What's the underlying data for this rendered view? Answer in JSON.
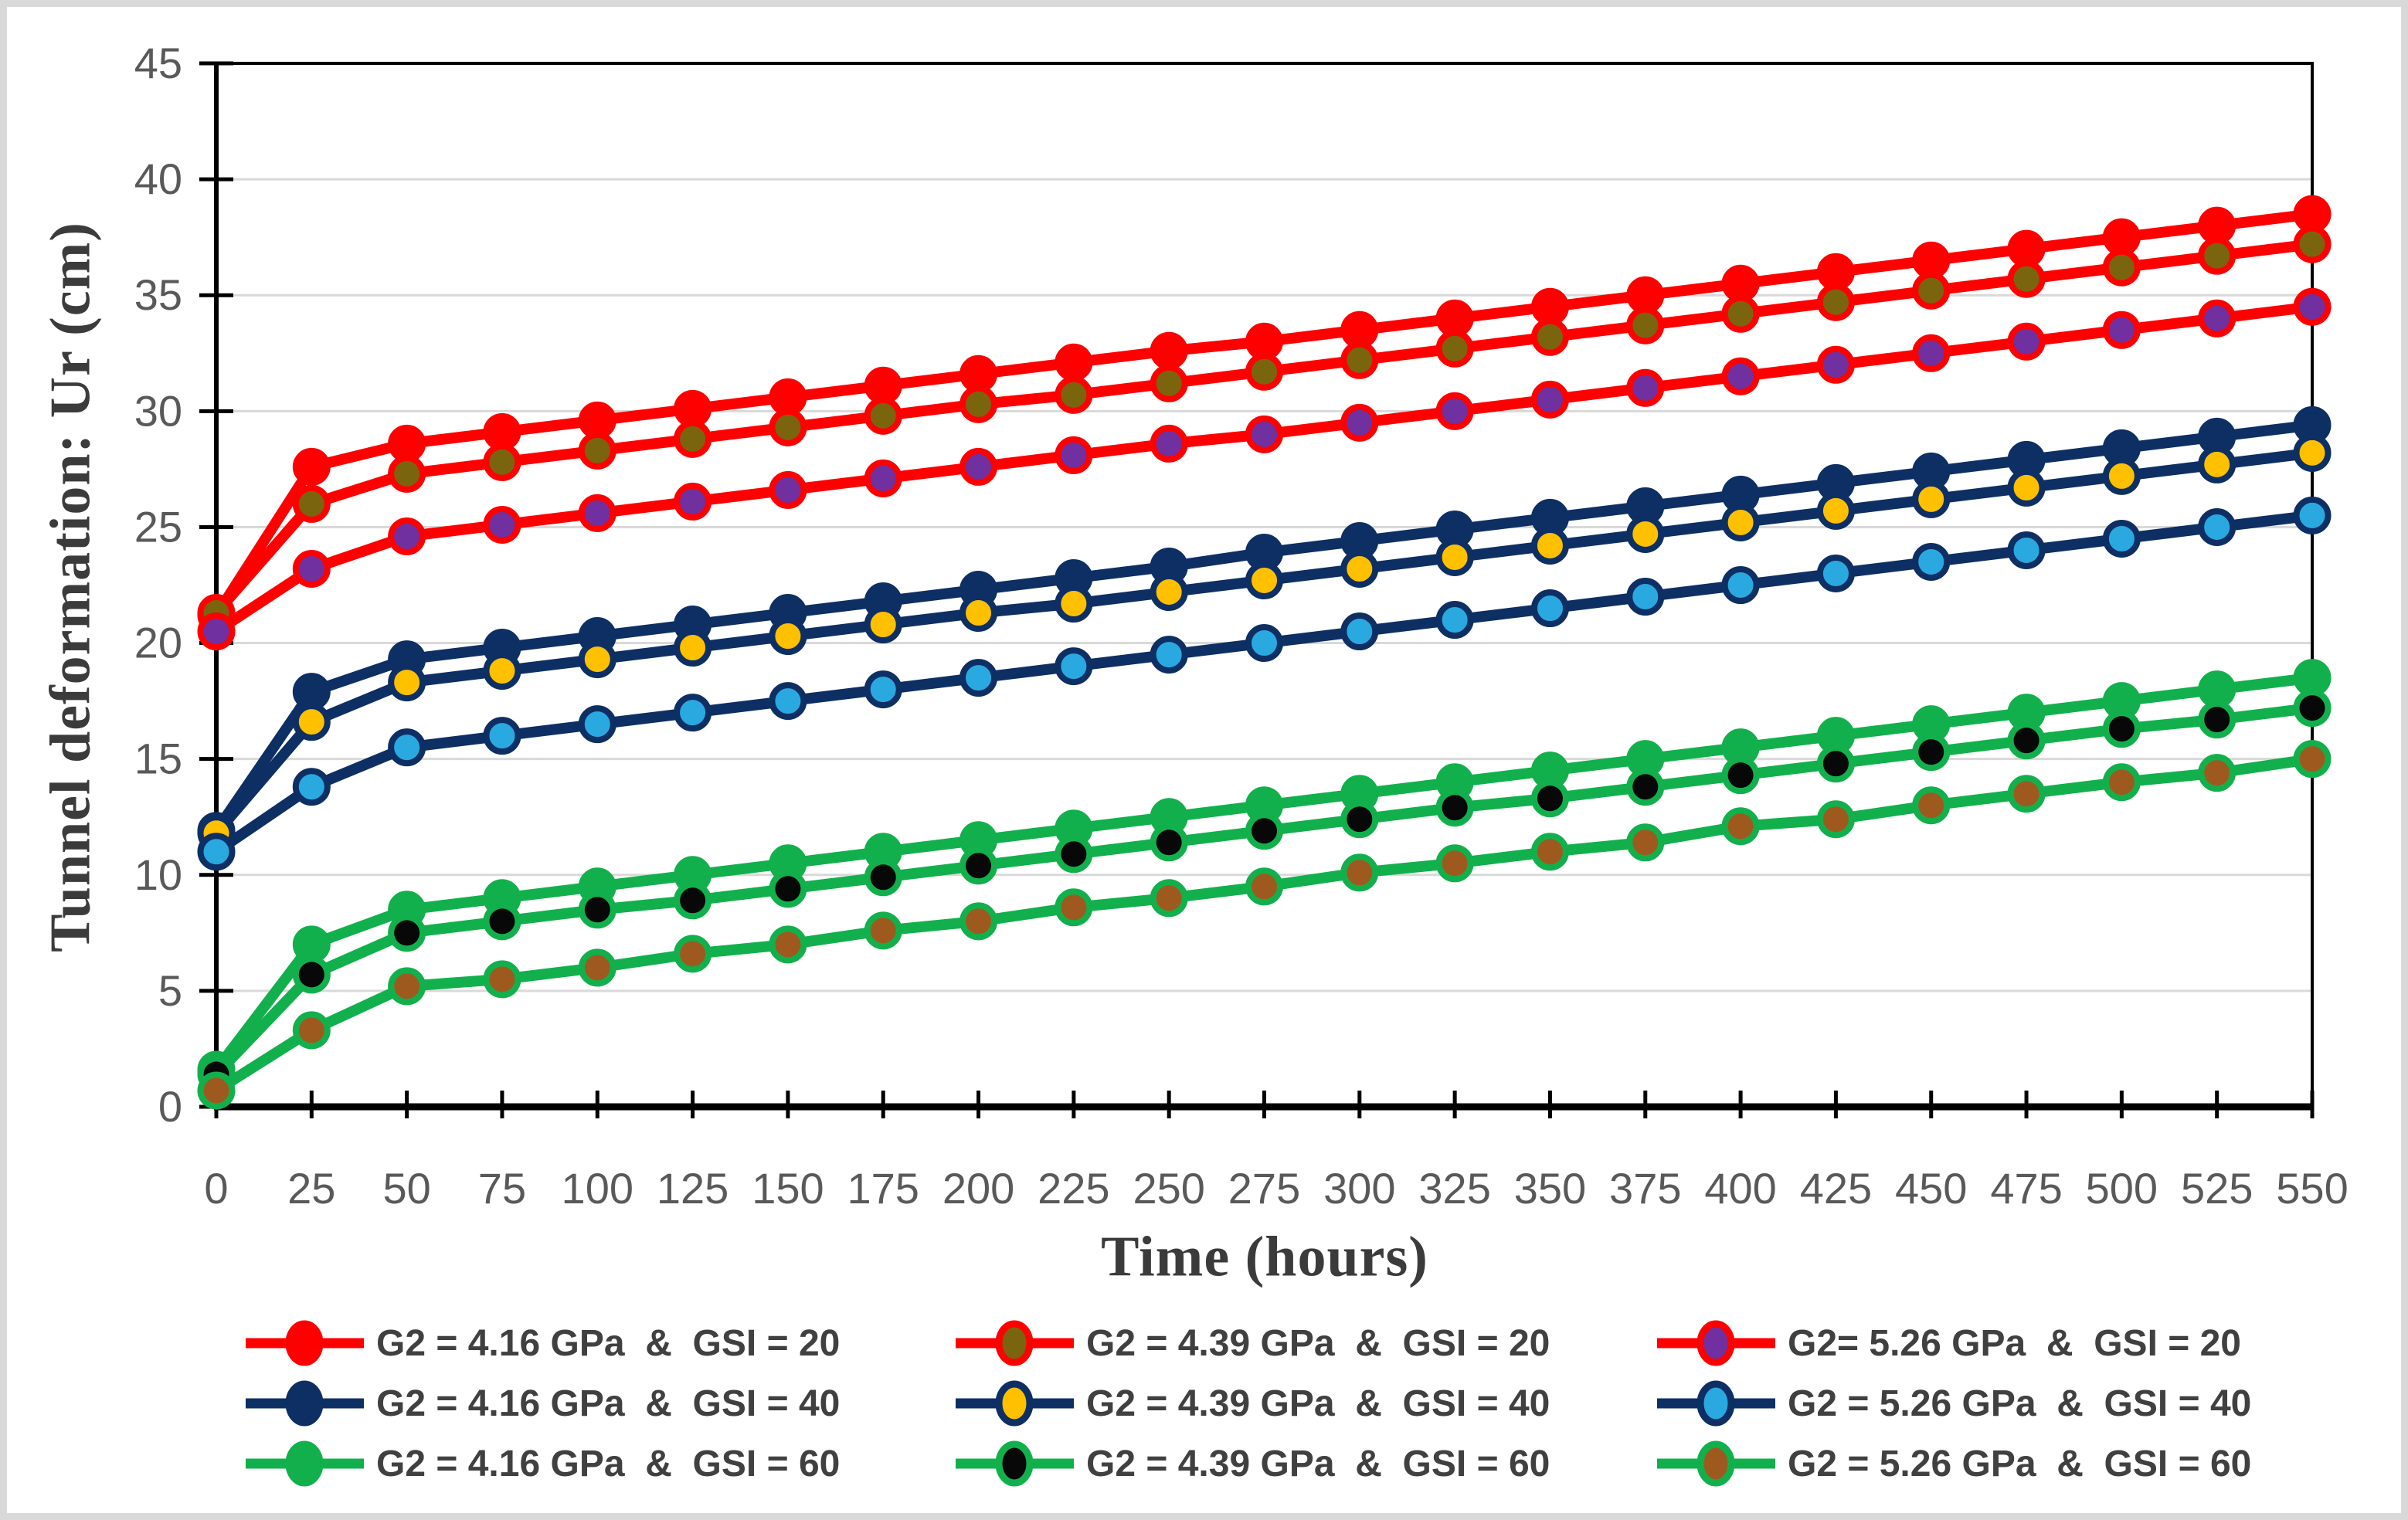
{
  "figure": {
    "y_axis_title": "Tunnel deformation: Ur (cm)",
    "x_axis_title": "Time (hours)"
  },
  "colors": {
    "red": "#fe0000",
    "navy": "#0d2f63",
    "green": "#12b04c",
    "olive": "#7a650e",
    "yellow": "#ffc000",
    "light_blue": "#29a9e0",
    "purple": "#7030a0",
    "black": "#080808",
    "brown": "#9e5a1e",
    "grid": "#d9d9d9",
    "axis": "#000000",
    "tick_label": "#595959",
    "axis_title": "#3b3b3b",
    "legend_text": "#404040",
    "page_border": "#d9d9d9"
  },
  "chart_data": {
    "type": "line",
    "title": "",
    "xlabel": "Time (hours)",
    "ylabel": "Tunnel deformation: Ur (cm)",
    "xlim": [
      0,
      550
    ],
    "ylim": [
      0,
      45
    ],
    "grid": "horizontal",
    "legend_position": "bottom",
    "x_ticks": [
      0,
      25,
      50,
      75,
      100,
      125,
      150,
      175,
      200,
      225,
      250,
      275,
      300,
      325,
      350,
      375,
      400,
      425,
      450,
      475,
      500,
      525,
      550
    ],
    "y_ticks": [
      0,
      5,
      10,
      15,
      20,
      25,
      30,
      35,
      40,
      45
    ],
    "x": [
      0,
      25,
      50,
      75,
      100,
      125,
      150,
      175,
      200,
      225,
      250,
      275,
      300,
      325,
      350,
      375,
      400,
      425,
      450,
      475,
      500,
      525,
      550
    ],
    "series": [
      {
        "name": "G2 = 4.16 GPa  &  GSI = 20",
        "line_color": "red",
        "marker_color": "red",
        "values": [
          21.2,
          27.6,
          28.6,
          29.1,
          29.6,
          30.1,
          30.6,
          31.1,
          31.6,
          32.1,
          32.6,
          33.0,
          33.5,
          34.0,
          34.5,
          35.0,
          35.5,
          36.0,
          36.5,
          37.0,
          37.5,
          38.0,
          38.5
        ]
      },
      {
        "name": "G2 = 4.39 GPa  &  GSI = 20",
        "line_color": "red",
        "marker_color": "olive",
        "values": [
          21.3,
          26.0,
          27.3,
          27.8,
          28.3,
          28.8,
          29.3,
          29.8,
          30.3,
          30.7,
          31.2,
          31.7,
          32.2,
          32.7,
          33.2,
          33.7,
          34.2,
          34.7,
          35.2,
          35.7,
          36.2,
          36.7,
          37.2
        ]
      },
      {
        "name": "G2= 5.26 GPa  &  GSI = 20",
        "line_color": "red",
        "marker_color": "purple",
        "values": [
          20.5,
          23.2,
          24.6,
          25.1,
          25.6,
          26.1,
          26.6,
          27.1,
          27.6,
          28.1,
          28.6,
          29.0,
          29.5,
          30.0,
          30.5,
          31.0,
          31.5,
          32.0,
          32.5,
          33.0,
          33.5,
          34.0,
          34.5
        ]
      },
      {
        "name": "G2 = 4.16 GPa  &  GSI = 40",
        "line_color": "navy",
        "marker_color": "navy",
        "values": [
          11.9,
          17.9,
          19.3,
          19.8,
          20.3,
          20.8,
          21.3,
          21.8,
          22.3,
          22.8,
          23.3,
          23.9,
          24.4,
          24.9,
          25.4,
          25.9,
          26.4,
          26.9,
          27.4,
          27.9,
          28.4,
          28.9,
          29.4
        ]
      },
      {
        "name": "G2 = 4.39 GPa  &  GSI = 40",
        "line_color": "navy",
        "marker_color": "yellow",
        "values": [
          11.8,
          16.6,
          18.3,
          18.8,
          19.3,
          19.8,
          20.3,
          20.8,
          21.3,
          21.7,
          22.2,
          22.7,
          23.2,
          23.7,
          24.2,
          24.7,
          25.2,
          25.7,
          26.2,
          26.7,
          27.2,
          27.7,
          28.2
        ]
      },
      {
        "name": "G2 = 5.26 GPa  &  GSI = 40",
        "line_color": "navy",
        "marker_color": "light_blue",
        "values": [
          11.0,
          13.8,
          15.5,
          16.0,
          16.5,
          17.0,
          17.5,
          18.0,
          18.5,
          19.0,
          19.5,
          20.0,
          20.5,
          21.0,
          21.5,
          22.0,
          22.5,
          23.0,
          23.5,
          24.0,
          24.5,
          25.0,
          25.5
        ]
      },
      {
        "name": "G2 = 4.16 GPa  &  GSI = 60",
        "line_color": "green",
        "marker_color": "green",
        "values": [
          1.6,
          7.0,
          8.5,
          9.0,
          9.5,
          10.0,
          10.5,
          11.0,
          11.5,
          12.0,
          12.5,
          13.0,
          13.5,
          14.0,
          14.5,
          15.0,
          15.5,
          16.0,
          16.5,
          17.0,
          17.5,
          18.0,
          18.5
        ]
      },
      {
        "name": "G2 = 4.39 GPa  &  GSI = 60",
        "line_color": "green",
        "marker_color": "black",
        "values": [
          1.4,
          5.7,
          7.5,
          8.0,
          8.5,
          8.9,
          9.4,
          9.9,
          10.4,
          10.9,
          11.4,
          11.9,
          12.4,
          12.9,
          13.3,
          13.8,
          14.3,
          14.8,
          15.3,
          15.8,
          16.3,
          16.7,
          17.2
        ]
      },
      {
        "name": "G2 = 5.26 GPa  &  GSI = 60",
        "line_color": "green",
        "marker_color": "brown",
        "values": [
          0.7,
          3.3,
          5.2,
          5.5,
          6.0,
          6.6,
          7.0,
          7.6,
          8.0,
          8.6,
          9.0,
          9.5,
          10.1,
          10.5,
          11.0,
          11.4,
          12.1,
          12.4,
          13.0,
          13.5,
          14.0,
          14.4,
          15.0
        ]
      }
    ]
  }
}
